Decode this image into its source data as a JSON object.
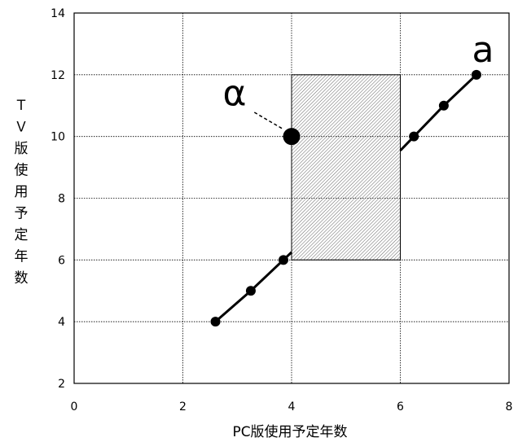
{
  "chart_data": {
    "type": "scatter",
    "title": "",
    "xlabel": "PC版使用予定年数",
    "ylabel": "ＴＶ版使用予定年数",
    "xlim": [
      0,
      8
    ],
    "ylim": [
      2,
      14
    ],
    "xticks": [
      0,
      2,
      4,
      6,
      8
    ],
    "yticks": [
      2,
      4,
      6,
      8,
      10,
      12,
      14
    ],
    "grid": true,
    "series": [
      {
        "name": "a",
        "points": [
          {
            "x": 2.6,
            "y": 4
          },
          {
            "x": 3.25,
            "y": 5
          },
          {
            "x": 3.85,
            "y": 6
          },
          {
            "x": 6.25,
            "y": 10
          },
          {
            "x": 6.8,
            "y": 11
          },
          {
            "x": 7.4,
            "y": 12
          }
        ]
      }
    ],
    "highlight_point": {
      "label": "α",
      "x": 4,
      "y": 10
    },
    "shaded_region": {
      "x": [
        4,
        6
      ],
      "y": [
        6,
        12
      ]
    }
  }
}
